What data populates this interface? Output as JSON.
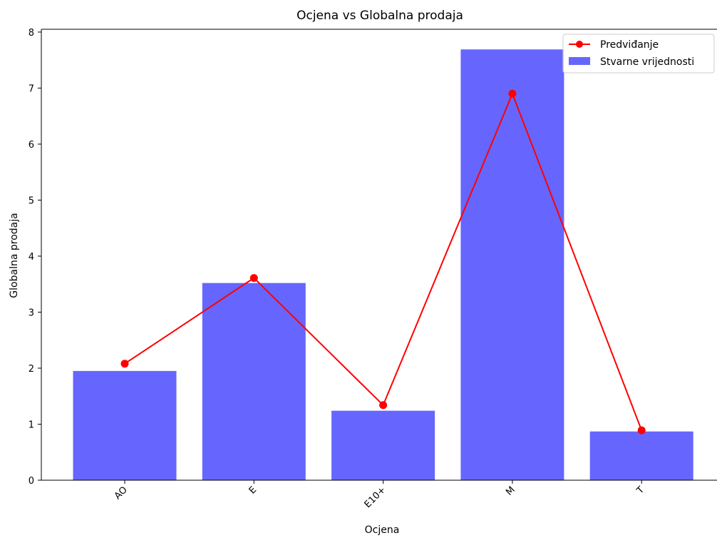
{
  "chart_data": {
    "type": "bar",
    "title": "Ocjena vs Globalna prodaja",
    "xlabel": "Ocjena",
    "ylabel": "Globalna prodaja",
    "categories": [
      "AO",
      "E",
      "E10+",
      "M",
      "T"
    ],
    "ylim": [
      0,
      8.05
    ],
    "yticks": [
      0,
      1,
      2,
      3,
      4,
      5,
      6,
      7,
      8
    ],
    "series": [
      {
        "name": "Stvarne vrijednosti",
        "kind": "bar",
        "color": "#6666ff",
        "values": [
          1.95,
          3.52,
          1.24,
          7.69,
          0.87
        ]
      },
      {
        "name": "Predviđanje",
        "kind": "line",
        "color": "#ff0000",
        "values": [
          2.08,
          3.61,
          1.34,
          6.9,
          0.89
        ]
      }
    ],
    "legend": "top-right",
    "grid": false
  }
}
